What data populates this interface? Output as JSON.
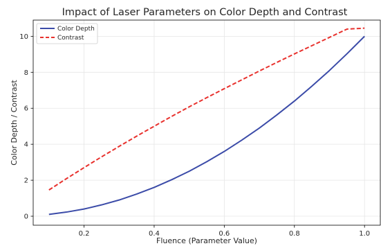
{
  "chart_data": {
    "type": "line",
    "title": "Impact of Laser Parameters on Color Depth and Contrast",
    "xlabel": "Fluence (Parameter Value)",
    "ylabel": "Color Depth / Contrast",
    "xlim": [
      0.055,
      1.045
    ],
    "ylim": [
      -0.5,
      10.9
    ],
    "xticks": [
      0.2,
      0.4,
      0.6,
      0.8,
      1.0
    ],
    "xtick_labels": [
      "0.2",
      "0.4",
      "0.6",
      "0.8",
      "1.0"
    ],
    "yticks": [
      0,
      2,
      4,
      6,
      8,
      10
    ],
    "ytick_labels": [
      "0",
      "2",
      "4",
      "6",
      "8",
      "10"
    ],
    "grid": true,
    "legend_position": "top-left",
    "x": [
      0.1,
      0.15,
      0.2,
      0.25,
      0.3,
      0.35,
      0.4,
      0.45,
      0.5,
      0.55,
      0.6,
      0.65,
      0.7,
      0.75,
      0.8,
      0.85,
      0.9,
      0.95,
      1.0
    ],
    "series": [
      {
        "name": "Color Depth",
        "color": "#3b4ba8",
        "dash": "solid",
        "values": [
          0.1,
          0.23,
          0.4,
          0.63,
          0.9,
          1.23,
          1.6,
          2.03,
          2.5,
          3.03,
          3.6,
          4.23,
          4.9,
          5.63,
          6.4,
          7.23,
          8.1,
          9.03,
          10.0
        ]
      },
      {
        "name": "Contrast",
        "color": "#e8312d",
        "dash": "dashed",
        "values": [
          1.46,
          2.09,
          2.7,
          3.3,
          3.88,
          4.45,
          5.0,
          5.55,
          6.08,
          6.59,
          7.09,
          7.58,
          8.07,
          8.55,
          9.02,
          9.48,
          9.94,
          10.4,
          10.45
        ]
      }
    ]
  }
}
